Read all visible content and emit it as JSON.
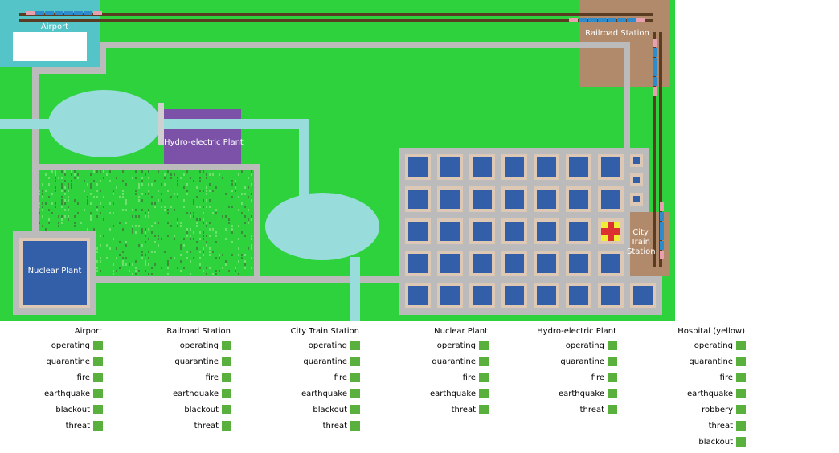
{
  "map": {
    "labels": {
      "airport": "Airport",
      "railroad_station": "Railroad Station",
      "city_train_station": "City Train Station",
      "hydro_plant": "Hydro-electric Plant",
      "nuclear_plant": "Nuclear Plant"
    },
    "colors": {
      "grass": "#2dd23c",
      "road": "#bbbbbb",
      "water": "#99dcdc",
      "airport": "#55c4c8",
      "station": "#b08a6a",
      "hydro": "#7b52a8",
      "building": "#335ea8",
      "lot": "#dcc8b4",
      "track": "#5a3c22",
      "hospital_cross": "#dd3030",
      "hospital_bg": "#eeee33"
    }
  },
  "legend": {
    "status_color": "#5ab03c",
    "groups": [
      {
        "title": "Airport",
        "items": [
          "operating",
          "quarantine",
          "fire",
          "earthquake",
          "blackout",
          "threat"
        ]
      },
      {
        "title": "Railroad Station",
        "items": [
          "operating",
          "quarantine",
          "fire",
          "earthquake",
          "blackout",
          "threat"
        ]
      },
      {
        "title": "City Train Station",
        "items": [
          "operating",
          "quarantine",
          "fire",
          "earthquake",
          "blackout",
          "threat"
        ]
      },
      {
        "title": "Nuclear Plant",
        "items": [
          "operating",
          "quarantine",
          "fire",
          "earthquake",
          "threat"
        ]
      },
      {
        "title": "Hydro-electric Plant",
        "items": [
          "operating",
          "quarantine",
          "fire",
          "earthquake",
          "threat"
        ]
      },
      {
        "title": "Hospital (yellow)",
        "items": [
          "operating",
          "quarantine",
          "fire",
          "earthquake",
          "robbery",
          "threat",
          "blackout"
        ]
      }
    ]
  }
}
